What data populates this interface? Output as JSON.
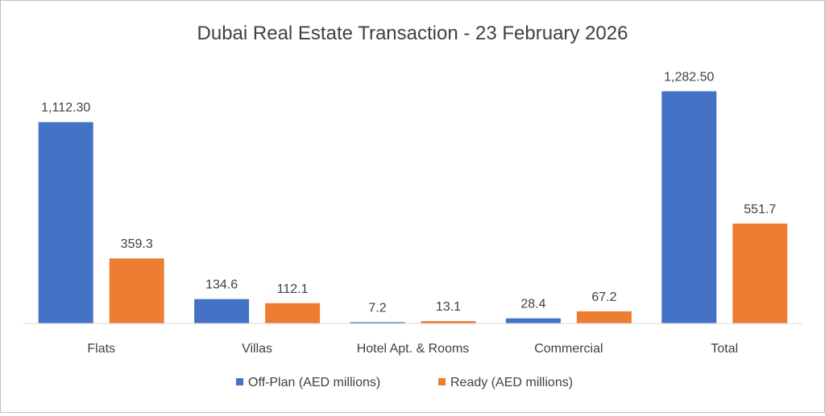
{
  "chart_data": {
    "type": "bar",
    "title": "Dubai Real Estate Transaction - 23 February 2026",
    "xlabel": "",
    "ylabel": "",
    "ylim": [
      0,
      1400
    ],
    "grid": false,
    "legend_position": "bottom",
    "categories": [
      "Flats",
      "Villas",
      "Hotel Apt. & Rooms",
      "Commercial",
      "Total"
    ],
    "series": [
      {
        "name": "Off-Plan (AED millions)",
        "color": "#4472C4",
        "values": [
          1112.3,
          134.6,
          7.2,
          28.4,
          1282.5
        ],
        "labels": [
          "1,112.30",
          "134.6",
          "7.2",
          "28.4",
          "1,282.50"
        ]
      },
      {
        "name": "Ready (AED millions)",
        "color": "#ED7D31",
        "values": [
          359.3,
          112.1,
          13.1,
          67.2,
          551.7
        ],
        "labels": [
          "359.3",
          "112.1",
          "13.1",
          "67.2",
          "551.7"
        ]
      }
    ]
  }
}
